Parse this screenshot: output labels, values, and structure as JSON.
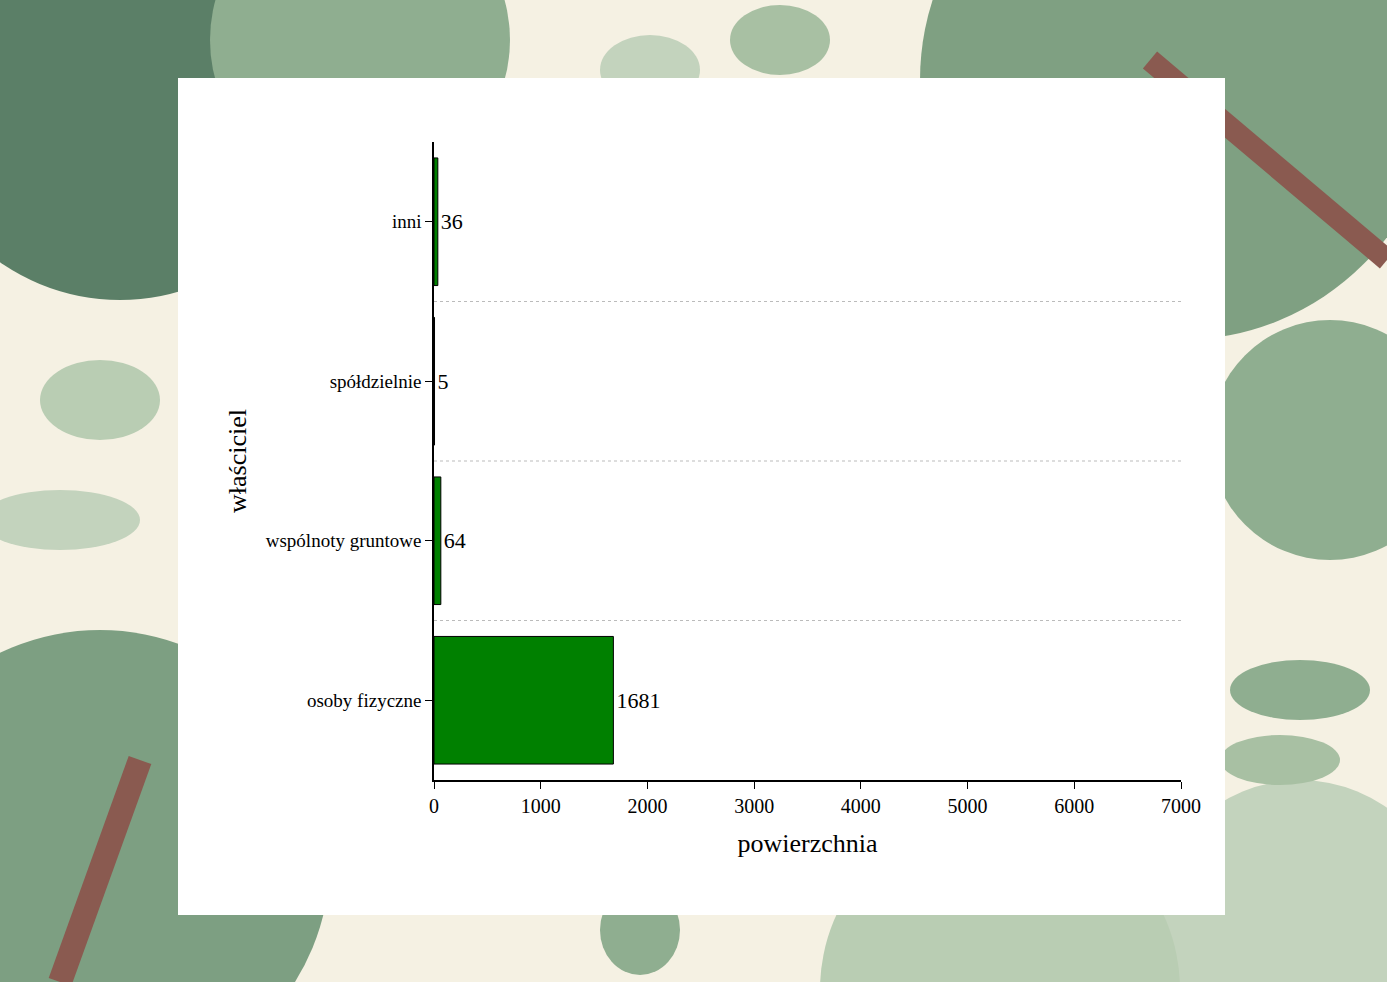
{
  "chart_data": {
    "type": "bar",
    "orientation": "horizontal",
    "x_label": "powierzchnia",
    "y_label": "właściciel",
    "categories": [
      "osoby fizyczne",
      "wspólnoty gruntowe",
      "spółdzielnie",
      "inni"
    ],
    "values": [
      1681,
      64,
      5,
      36
    ],
    "color": "#008000",
    "xlim": [
      0,
      7000
    ],
    "xticks": [
      0,
      1000,
      2000,
      3000,
      4000,
      5000,
      6000,
      7000
    ],
    "grid": true,
    "data_labels": true
  }
}
